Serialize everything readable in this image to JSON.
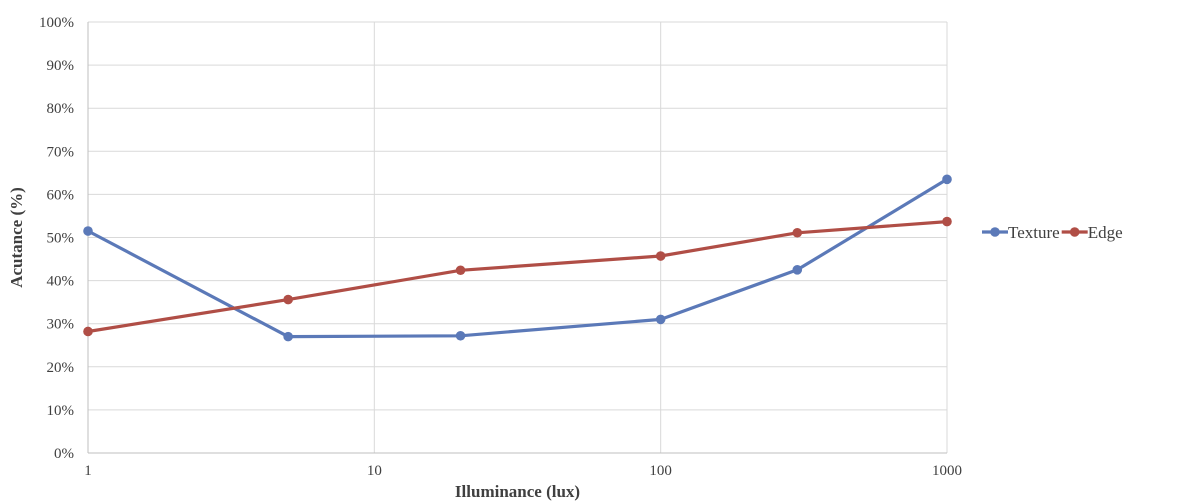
{
  "chart_data": {
    "type": "line",
    "title": "",
    "xlabel": "Illuminance (lux)",
    "ylabel": "Acutance (%)",
    "x_scale": "log",
    "xlim": [
      1,
      1000
    ],
    "ylim": [
      0,
      100
    ],
    "x_ticks": [
      "1",
      "10",
      "100",
      "1000"
    ],
    "y_ticks": [
      "0%",
      "10%",
      "20%",
      "30%",
      "40%",
      "50%",
      "60%",
      "70%",
      "80%",
      "90%",
      "100%"
    ],
    "grid": true,
    "legend_position": "right",
    "x": [
      1,
      5,
      20,
      100,
      300,
      1000
    ],
    "series": [
      {
        "name": "Texture",
        "color": "#5b79b8",
        "values": [
          51.5,
          27,
          27.2,
          31,
          42.5,
          63.5
        ]
      },
      {
        "name": "Edge",
        "color": "#b04e46",
        "values": [
          28.2,
          35.6,
          42.4,
          45.7,
          51.1,
          53.7
        ]
      }
    ]
  }
}
